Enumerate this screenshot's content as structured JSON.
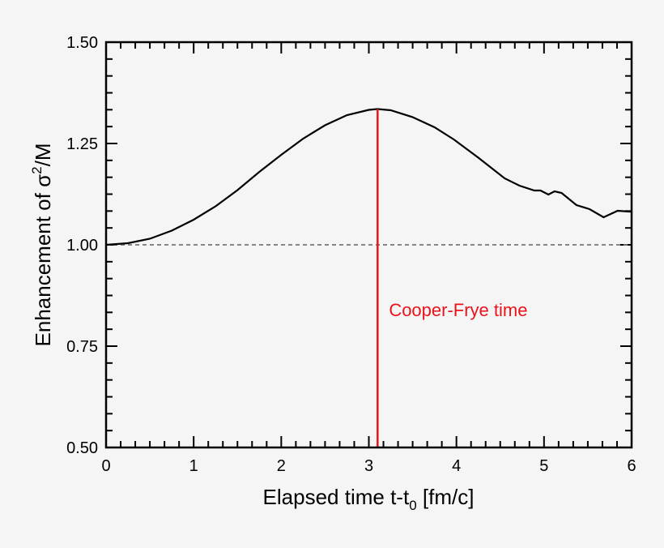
{
  "chart_data": {
    "type": "line",
    "title": "",
    "xlabel": "Elapsed time t-t",
    "xlabel_sub": "0",
    "xlabel_unit": " [fm/c]",
    "ylabel": "Enhancement of  σ",
    "ylabel_sup": "2",
    "ylabel_tail": "/M",
    "xlim": [
      0,
      6
    ],
    "ylim": [
      0.5,
      1.5
    ],
    "xticks": [
      "0",
      "1",
      "2",
      "3",
      "4",
      "5",
      "6"
    ],
    "yticks": [
      "0.50",
      "0.75",
      "1.00",
      "1.25",
      "1.50"
    ],
    "grid": false,
    "series": [
      {
        "color": "#000000",
        "x": [
          0,
          0.25,
          0.5,
          0.75,
          1.0,
          1.25,
          1.5,
          1.75,
          2.0,
          2.25,
          2.5,
          2.75,
          3.0,
          3.1,
          3.25,
          3.5,
          3.75,
          3.97,
          4.25,
          4.55,
          4.72,
          4.89,
          4.96,
          5.05,
          5.12,
          5.2,
          5.37,
          5.52,
          5.68,
          5.84,
          5.97,
          6.0
        ],
        "y": [
          1.0,
          1.004,
          1.015,
          1.035,
          1.062,
          1.095,
          1.135,
          1.18,
          1.222,
          1.262,
          1.295,
          1.32,
          1.333,
          1.335,
          1.332,
          1.315,
          1.29,
          1.26,
          1.215,
          1.164,
          1.146,
          1.134,
          1.134,
          1.124,
          1.132,
          1.128,
          1.098,
          1.088,
          1.068,
          1.084,
          1.082,
          1.082
        ]
      }
    ],
    "reference_line": {
      "y": 1.0,
      "style": "dashed",
      "color": "#777777"
    },
    "annotation": {
      "x": 3.1,
      "label": "Cooper-Frye time",
      "color": "#e8141b"
    }
  }
}
